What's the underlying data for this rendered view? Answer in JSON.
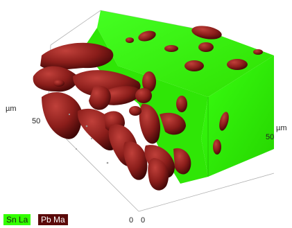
{
  "axes": {
    "left_unit": "µm",
    "left_value": "50",
    "right_unit": "µm",
    "right_value": "50",
    "origin_left": "0",
    "origin_right": "0"
  },
  "legend": [
    {
      "label": "Sn La",
      "color": "#33ff00",
      "text_color": "#1a1a1a"
    },
    {
      "label": "Pb Ma",
      "color": "#5a0a0a",
      "text_color": "#ffffff"
    }
  ],
  "colors": {
    "sn_phase": "#33ff00",
    "pb_phase": "#8b1a1a"
  }
}
